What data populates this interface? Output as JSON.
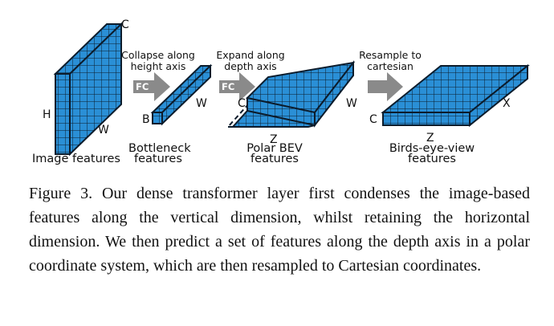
{
  "labels": {
    "image": {
      "h": "H",
      "w": "W",
      "c": "C",
      "caption": "Image features"
    },
    "bottleneck": {
      "b": "B",
      "w": "W",
      "caption_line1": "Bottleneck",
      "caption_line2": "features"
    },
    "polar": {
      "c": "C",
      "w": "W",
      "z": "Z",
      "caption_line1": "Polar BEV",
      "caption_line2": "features"
    },
    "bev": {
      "c": "C",
      "z": "Z",
      "x": "X",
      "caption_line1": "Birds-eye-view",
      "caption_line2": "features"
    }
  },
  "steps": {
    "collapse_line1": "Collapse along",
    "collapse_line2": "height axis",
    "expand_line1": "Expand along",
    "expand_line2": "depth axis",
    "resample_line1": "Resample to",
    "resample_line2": "cartesian",
    "fc1": "FC",
    "fc2": "FC"
  },
  "caption": "Figure 3. Our dense transformer layer first condenses the image-based features along the vertical dimension, whilst retaining the horizontal dimension. We then predict a set of features along the depth axis in a polar coordinate system, which are then resampled to Cartesian coordinates.",
  "colors": {
    "block_fill": "#2a8fd6",
    "block_line": "#0c1c2c",
    "arrow": "#8a8a8a"
  }
}
